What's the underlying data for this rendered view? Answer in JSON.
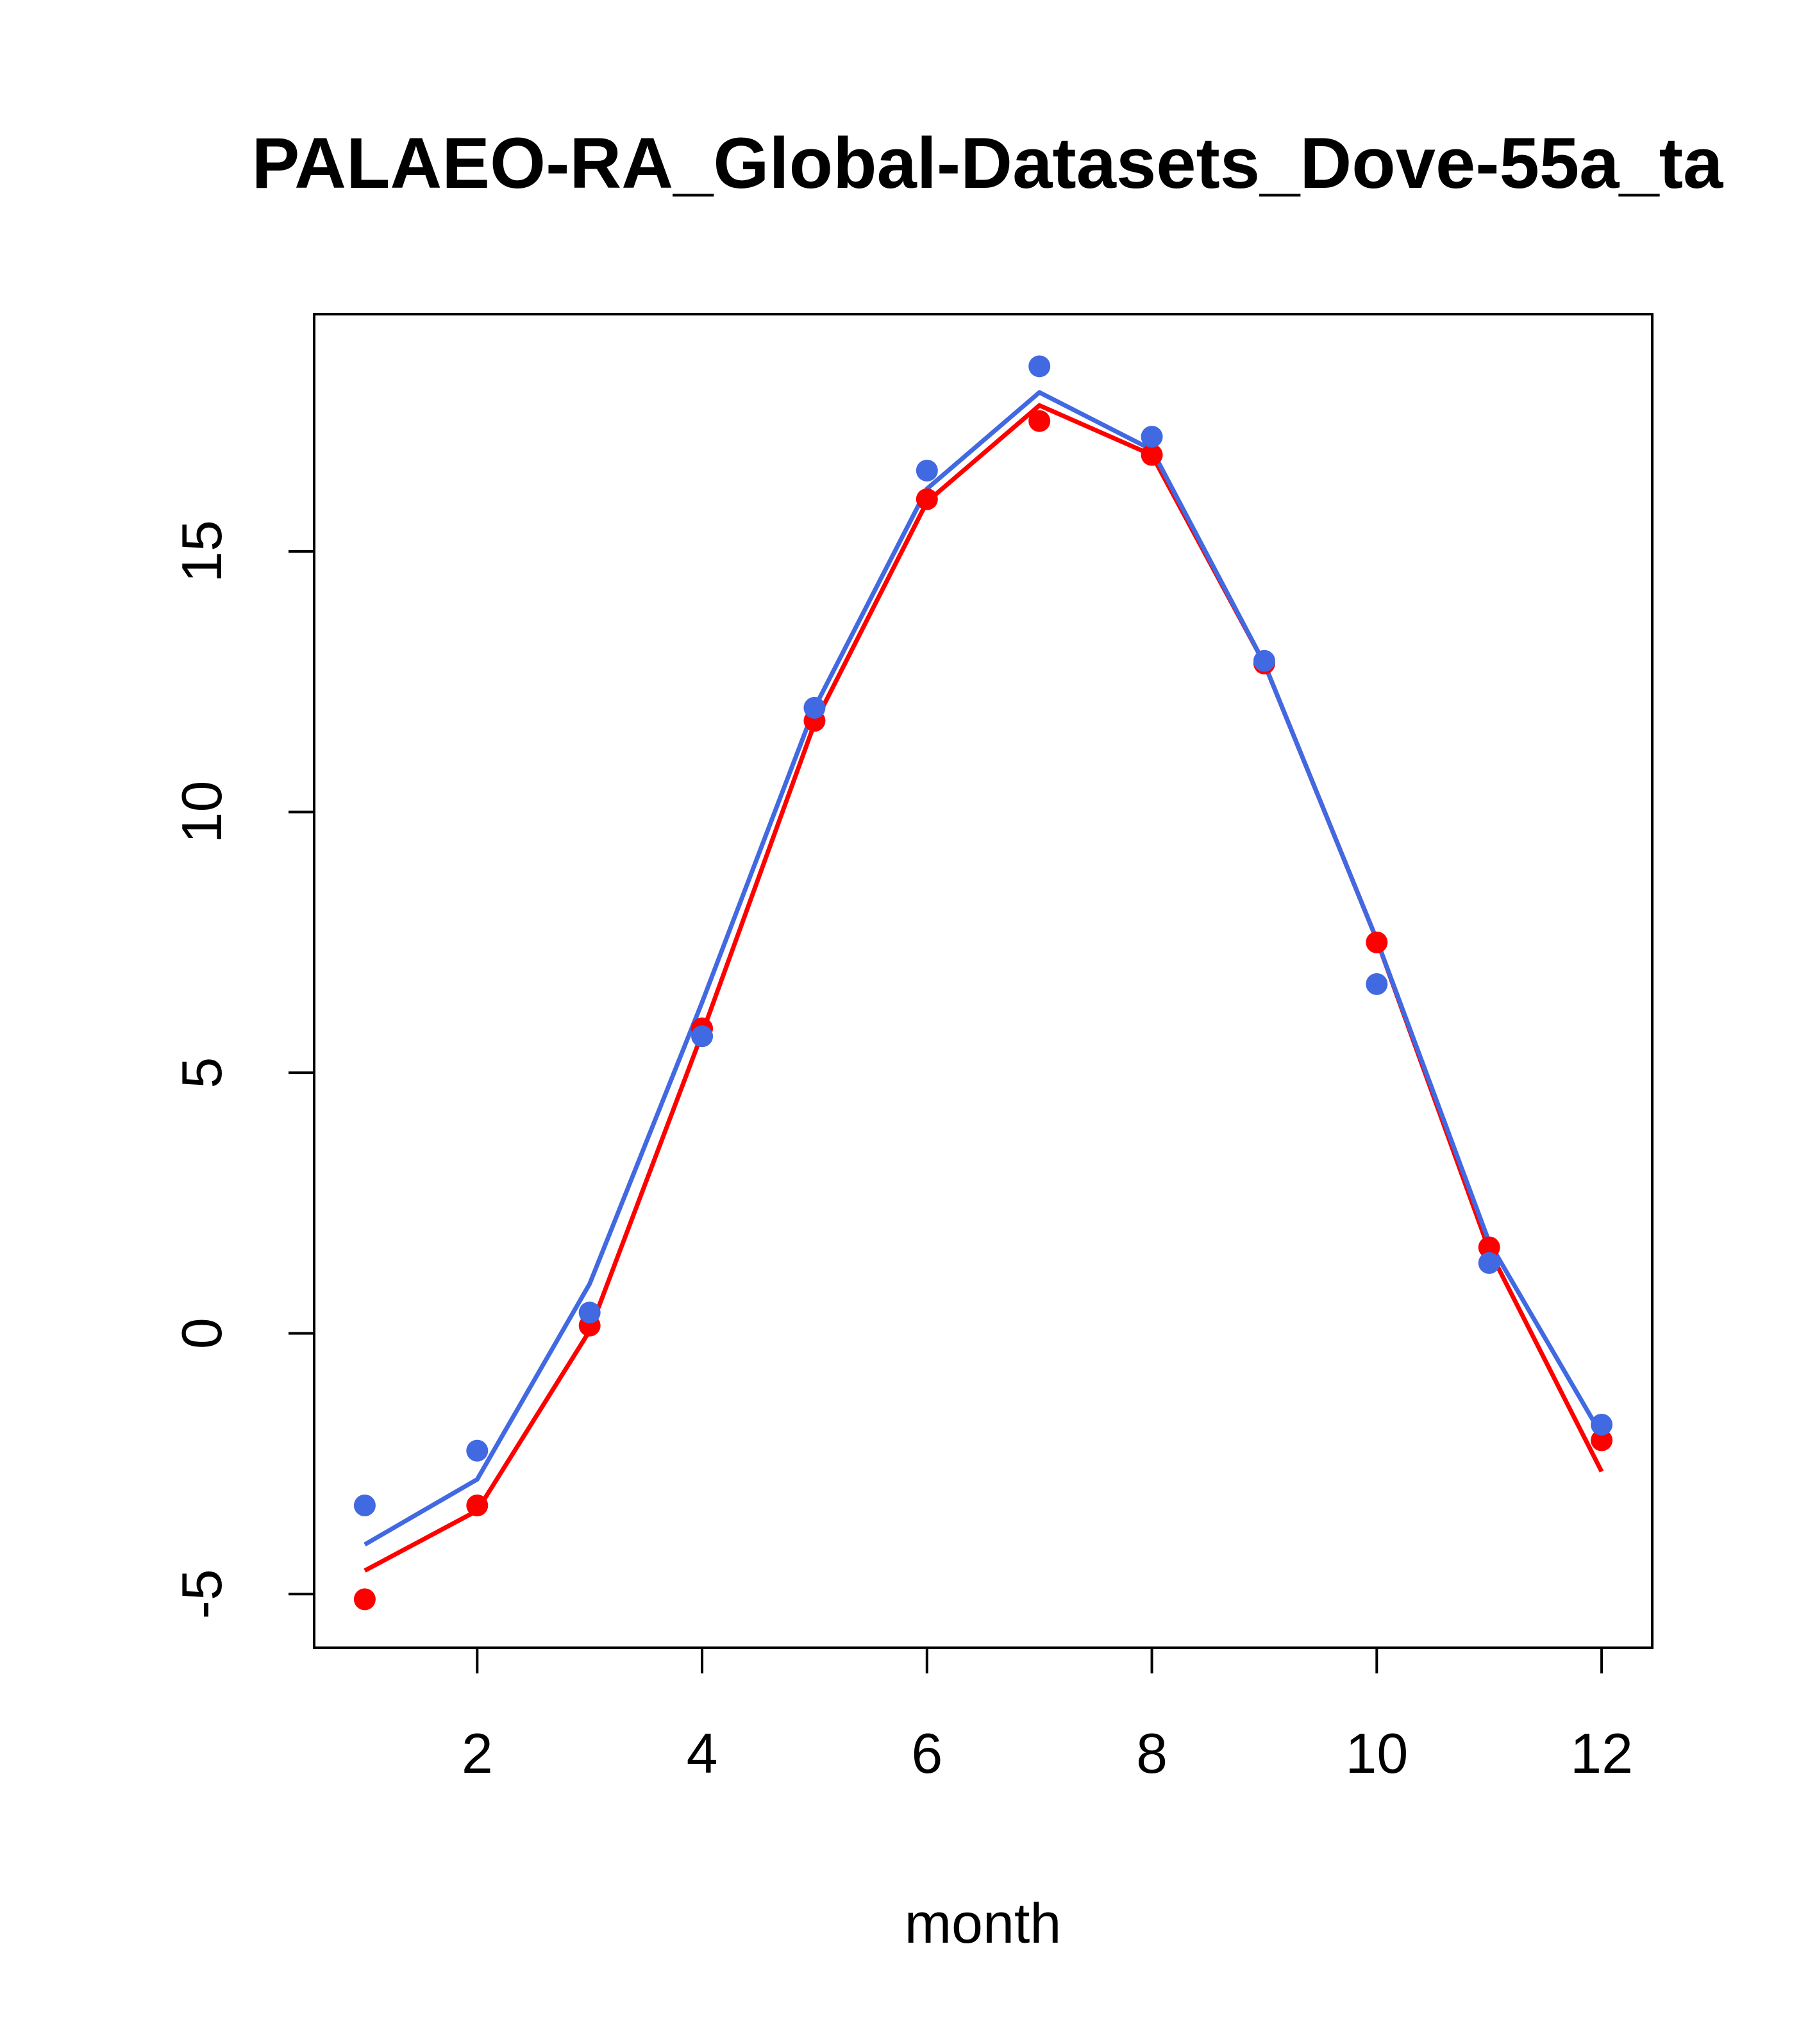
{
  "chart_data": {
    "type": "line",
    "title": "PALAEO-RA_Global-Datasets_Dove-55a_ta",
    "xlabel": "month",
    "ylabel": "",
    "xlim": [
      0.55,
      12.45
    ],
    "ylim": [
      -6.03,
      19.55
    ],
    "x_ticks": [
      2,
      4,
      6,
      8,
      10,
      12
    ],
    "y_ticks": [
      -5,
      0,
      5,
      10,
      15
    ],
    "x_tick_labels": [
      "2",
      "4",
      "6",
      "8",
      "10",
      "12"
    ],
    "y_tick_labels": [
      "-5",
      "0",
      "5",
      "10",
      "15"
    ],
    "x": [
      1,
      2,
      3,
      4,
      5,
      6,
      7,
      8,
      9,
      10,
      11,
      12
    ],
    "series": [
      {
        "name": "red",
        "color": "#ff0000",
        "points": [
          -5.1,
          -3.3,
          0.15,
          5.85,
          11.75,
          16.0,
          17.5,
          16.85,
          12.85,
          7.5,
          1.65,
          -2.05
        ],
        "line": [
          -4.55,
          -3.4,
          0.05,
          5.75,
          11.7,
          15.95,
          17.8,
          16.85,
          12.85,
          7.55,
          1.6,
          -2.65
        ]
      },
      {
        "name": "blue",
        "color": "#4169e1",
        "points": [
          -3.3,
          -2.25,
          0.4,
          5.7,
          12.0,
          16.55,
          18.55,
          17.2,
          12.9,
          6.7,
          1.35,
          -1.75
        ],
        "line": [
          -4.05,
          -2.8,
          0.95,
          6.35,
          12.0,
          16.2,
          18.05,
          16.95,
          12.85,
          7.55,
          1.75,
          -1.95
        ]
      }
    ]
  }
}
